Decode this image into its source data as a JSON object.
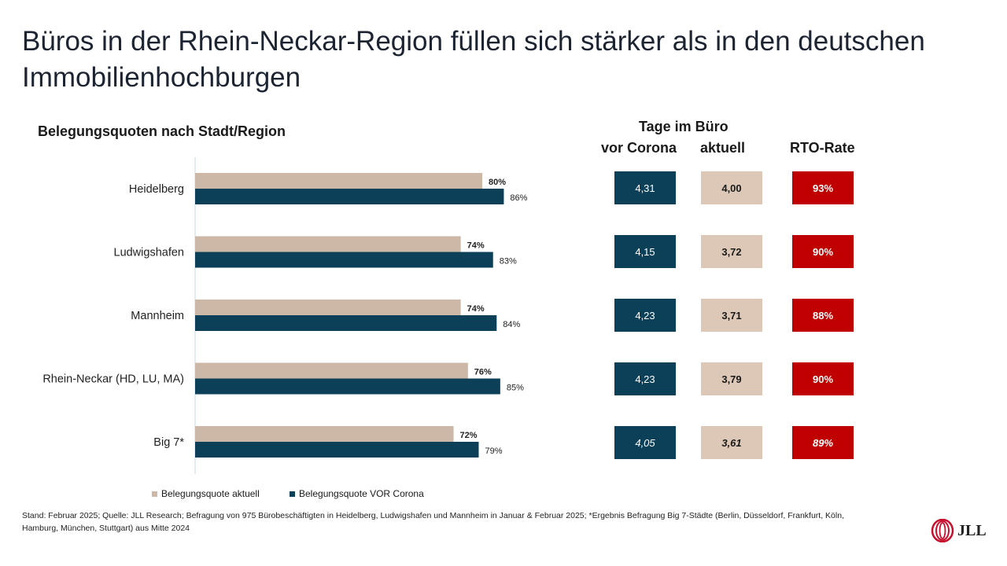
{
  "title": "Büros in der Rhein-Neckar-Region füllen sich stärker als in den deutschen Immobilienhochburgen",
  "chart_subtitle": "Belegungsquoten nach Stadt/Region",
  "colors": {
    "aktuell": "#cdb7a6",
    "vor_corona": "#0b4058",
    "rto": "#c00000",
    "aktuell_box": "#ddc8b7"
  },
  "chart_data": {
    "type": "bar",
    "orientation": "horizontal",
    "categories": [
      "Heidelberg",
      "Ludwigshafen",
      "Mannheim",
      "Rhein-Neckar (HD, LU, MA)",
      "Big 7*"
    ],
    "series": [
      {
        "name": "Belegungsquote aktuell",
        "values": [
          80,
          74,
          74,
          76,
          72
        ],
        "labels": [
          "80%",
          "74%",
          "74%",
          "76%",
          "72%"
        ]
      },
      {
        "name": "Belegungsquote VOR Corona",
        "values": [
          86,
          83,
          84,
          85,
          79
        ],
        "labels": [
          "86%",
          "83%",
          "84%",
          "85%",
          "79%"
        ]
      }
    ],
    "xlim": [
      0,
      100
    ],
    "legend": "bottom"
  },
  "table": {
    "header_top": "Tage im Büro",
    "col1": "vor Corona",
    "col2": "aktuell",
    "col3": "RTO-Rate",
    "vor_corona": [
      "4,31",
      "4,15",
      "4,23",
      "4,23",
      "4,05"
    ],
    "aktuell": [
      "4,00",
      "3,72",
      "3,71",
      "3,79",
      "3,61"
    ],
    "rto": [
      "93%",
      "90%",
      "88%",
      "90%",
      "89%"
    ]
  },
  "legend": {
    "aktuell": "Belegungsquote aktuell",
    "vor_corona": "Belegungsquote VOR Corona"
  },
  "footnote": "Stand: Februar 2025; Quelle: JLL Research; Befragung von 975 Bürobeschäftigten in Heidelberg, Ludwigshafen und Mannheim in Januar & Februar 2025; *Ergebnis Befragung Big 7-Städte (Berlin, Düsseldorf, Frankfurt, Köln, Hamburg, München, Stuttgart) aus Mitte 2024",
  "logo_text": "JLL"
}
